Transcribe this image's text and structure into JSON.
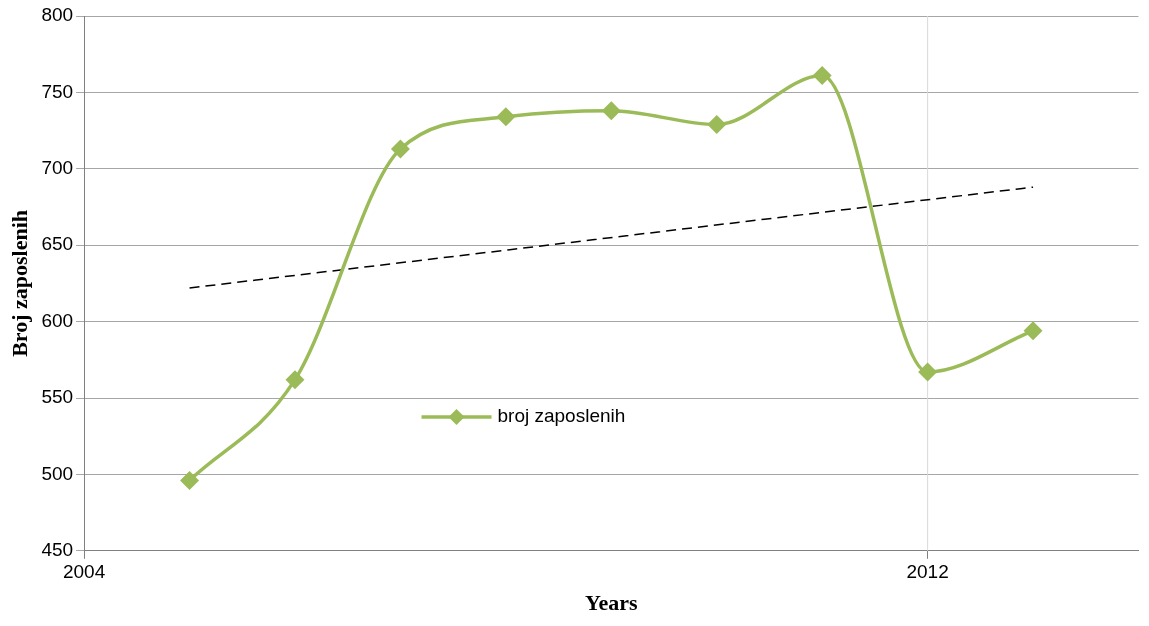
{
  "chart_data": {
    "type": "line",
    "xlabel": "Years",
    "ylabel": "Broj zaposlenih",
    "x": [
      2005,
      2006,
      2007,
      2008,
      2009,
      2010,
      2011,
      2012,
      2013
    ],
    "series": [
      {
        "name": "broj zaposlenih",
        "color": "#9bbb59",
        "values": [
          496,
          562,
          713,
          734,
          738,
          729,
          761,
          567,
          594
        ],
        "marker": "diamond",
        "line_style": "solid"
      },
      {
        "type": "line",
        "color": "#000000",
        "x": [
          2005,
          2013
        ],
        "values": [
          622,
          688
        ],
        "marker": "none",
        "line_style": "dashed"
      }
    ],
    "xlim": [
      2004,
      2014
    ],
    "xticks": [
      2004,
      2012
    ],
    "ylim": [
      450,
      800
    ],
    "yticks": [
      450,
      500,
      550,
      600,
      650,
      700,
      750,
      800
    ],
    "ref_lines": [
      {
        "axis": "x",
        "value": 2012,
        "color": "#d9d9d9",
        "line_style": "solid"
      }
    ],
    "grid": "y",
    "legend": "center"
  }
}
